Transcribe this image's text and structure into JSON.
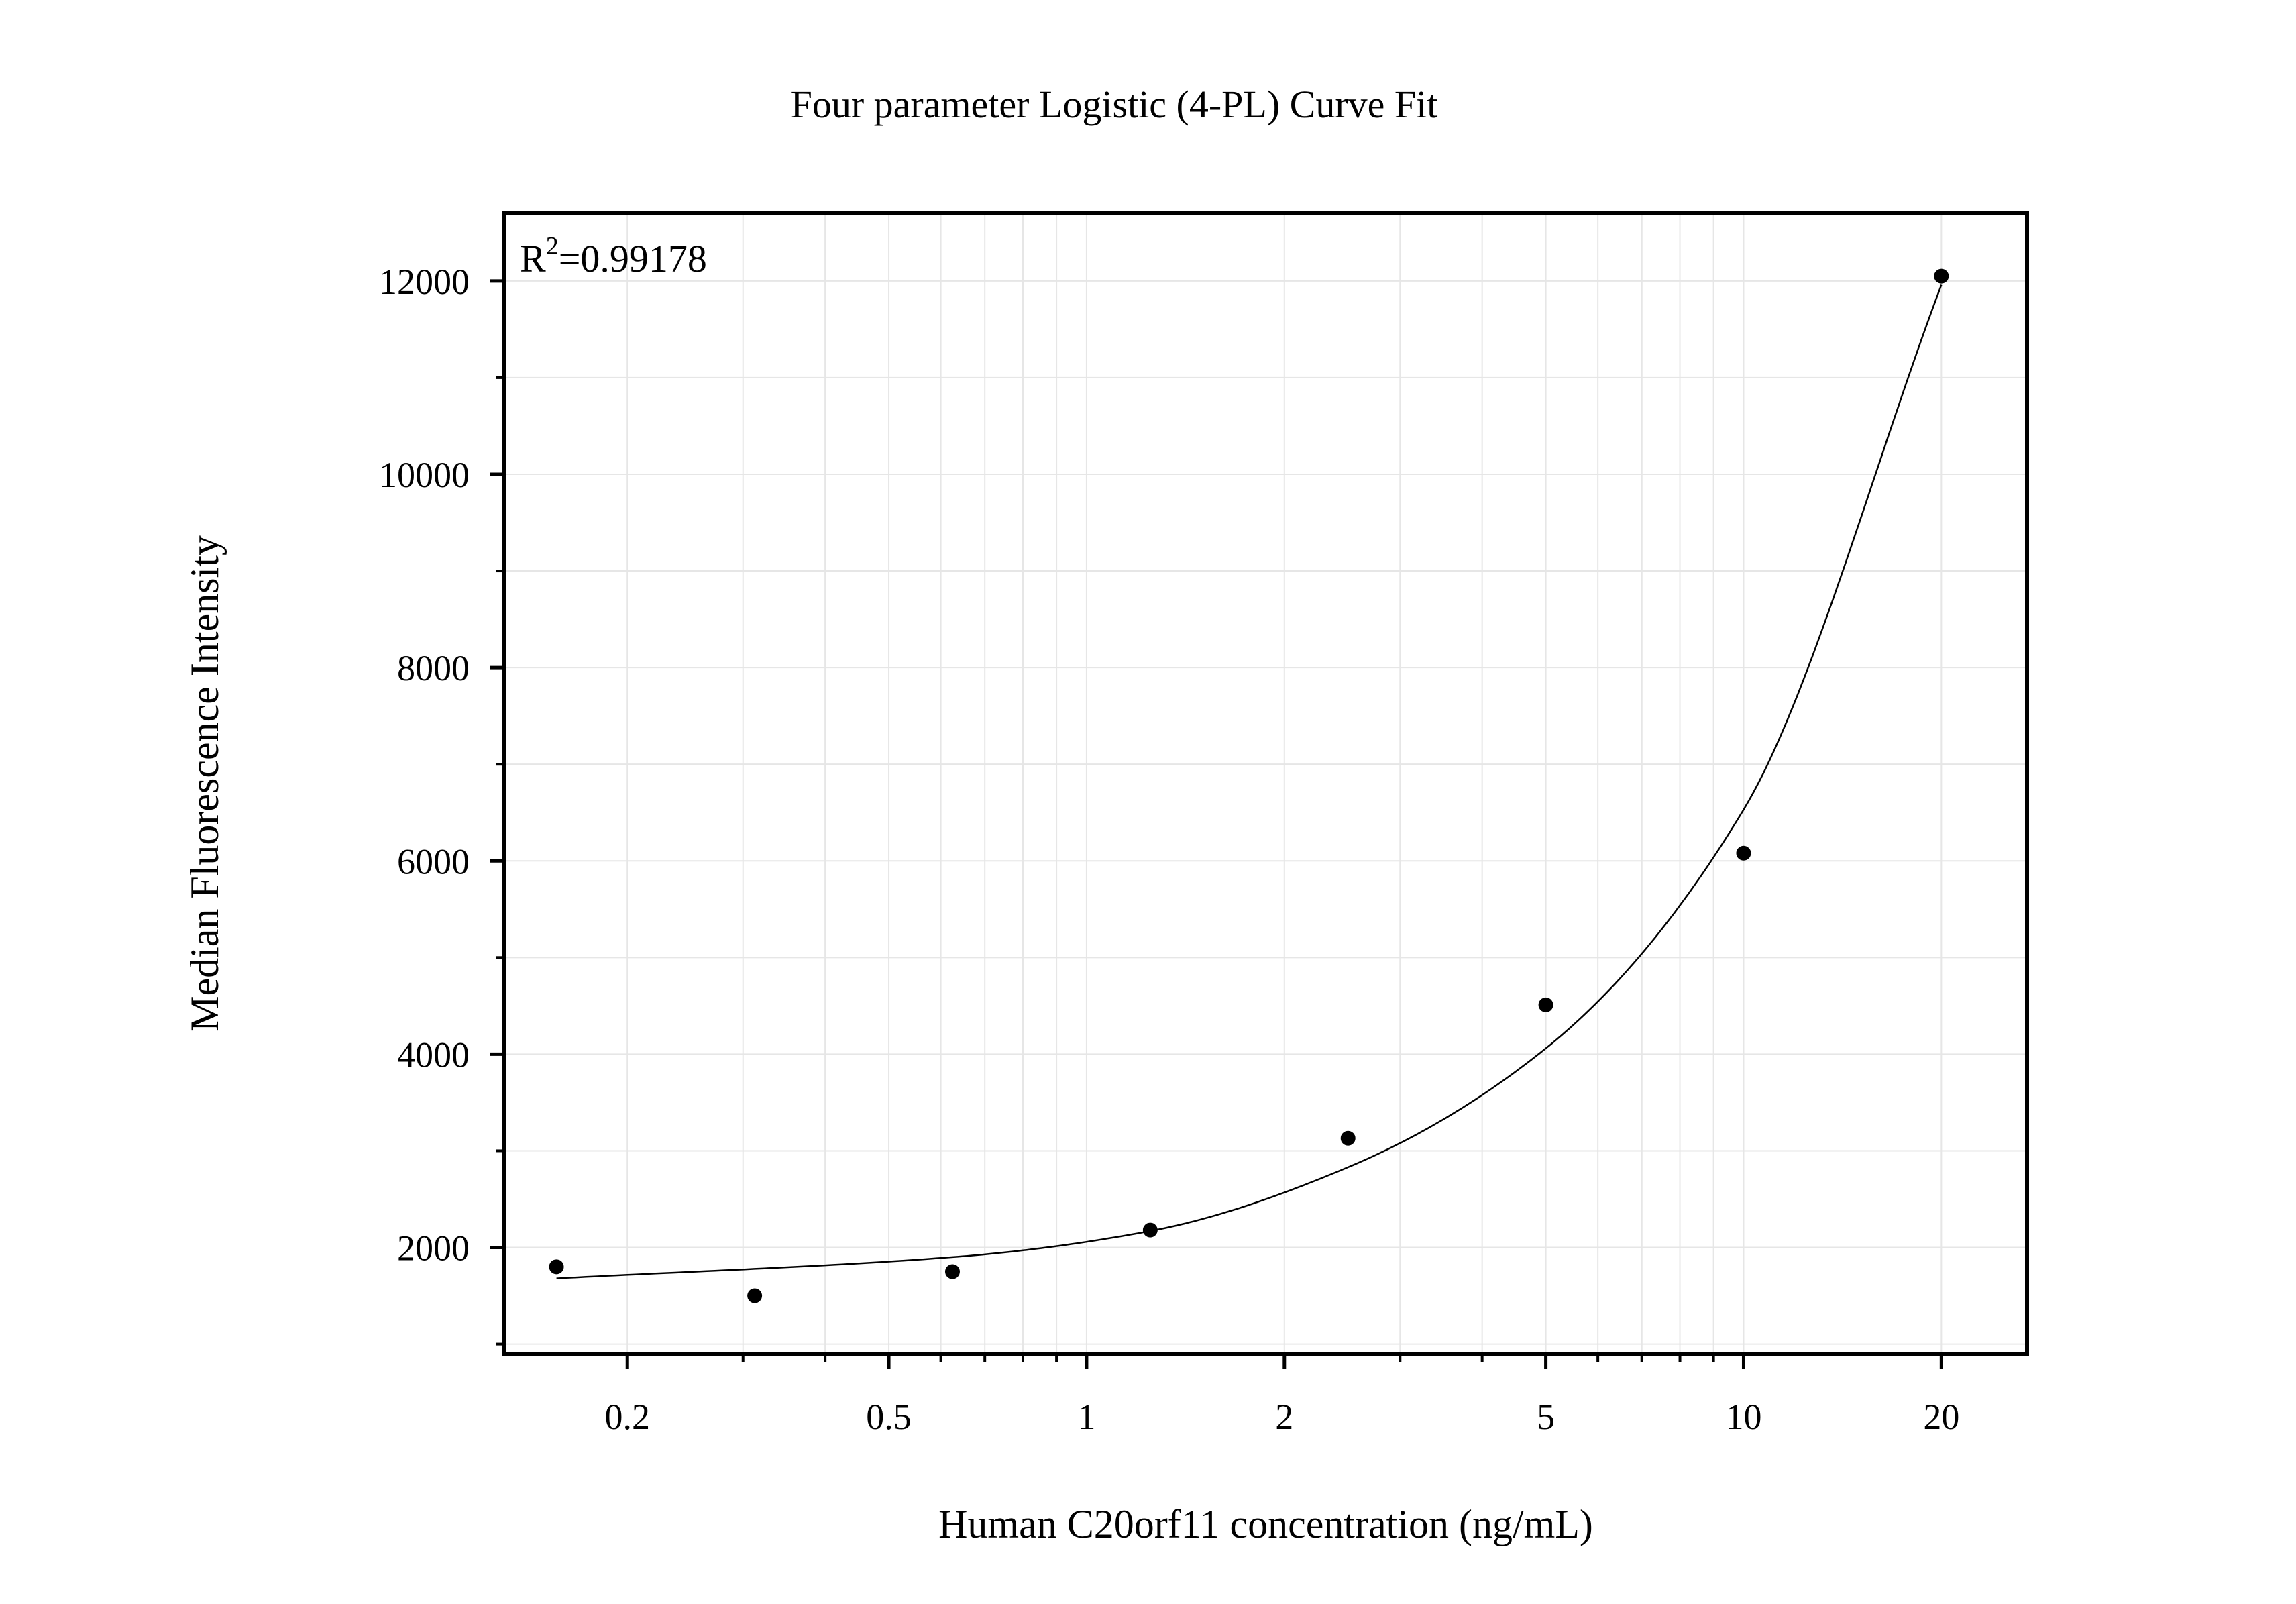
{
  "chart_data": {
    "type": "scatter",
    "title": "Four parameter Logistic (4-PL) Curve Fit",
    "xlabel": "Human C20orf11 concentration (ng/mL)",
    "ylabel": "Median Fluorescence Intensity",
    "x_scale": "log",
    "xlim": [
      0.13,
      27
    ],
    "ylim": [
      900,
      12700
    ],
    "grid": true,
    "x_ticks": [
      0.2,
      0.5,
      1,
      2,
      5,
      10,
      20
    ],
    "x_tick_labels": [
      "0.2",
      "0.5",
      "1",
      "2",
      "5",
      "10",
      "20"
    ],
    "y_ticks": [
      2000,
      4000,
      6000,
      8000,
      10000,
      12000
    ],
    "y_tick_labels": [
      "2000",
      "4000",
      "6000",
      "8000",
      "10000",
      "12000"
    ],
    "annotation": {
      "base": "R",
      "sup": "2",
      "rest": "=0.99178"
    },
    "points": {
      "x": [
        0.156,
        0.3125,
        0.625,
        1.25,
        2.5,
        5,
        10,
        20
      ],
      "y": [
        1800,
        1500,
        1750,
        2180,
        3130,
        4510,
        6080,
        12050
      ]
    },
    "fit_curve": {
      "x": [
        0.156,
        0.625,
        1.25,
        2.5,
        5,
        10,
        20
      ],
      "y": [
        1680,
        1900,
        2170,
        2830,
        4060,
        6530,
        11960
      ]
    }
  }
}
